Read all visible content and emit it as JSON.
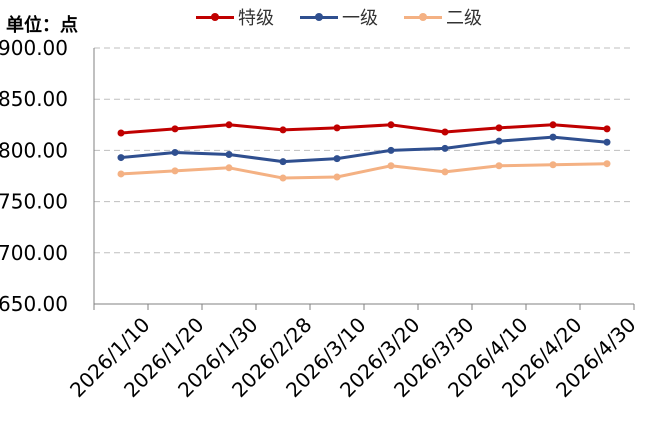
{
  "unit_label": "单位：点",
  "chart_data": {
    "type": "line",
    "ylabel": "",
    "xlabel": "",
    "ylim": [
      650,
      900
    ],
    "y_ticks": [
      "900.00",
      "850.00",
      "800.00",
      "750.00",
      "700.00",
      "650.00"
    ],
    "grid": true,
    "legend_position": "top",
    "categories": [
      "2026/1/10",
      "2026/1/20",
      "2026/1/30",
      "2026/2/28",
      "2026/3/10",
      "2026/3/20",
      "2026/3/30",
      "2026/4/10",
      "2026/4/20",
      "2026/4/30"
    ],
    "series": [
      {
        "name": "特级",
        "color": "#C00000",
        "values": [
          817,
          821,
          825,
          820,
          822,
          825,
          818,
          822,
          825,
          821
        ]
      },
      {
        "name": "一级",
        "color": "#2F4F8F",
        "values": [
          793,
          798,
          796,
          789,
          792,
          800,
          802,
          809,
          813,
          808
        ]
      },
      {
        "name": "二级",
        "color": "#F4B183",
        "values": [
          777,
          780,
          783,
          773,
          774,
          785,
          779,
          785,
          786,
          787
        ]
      }
    ]
  }
}
